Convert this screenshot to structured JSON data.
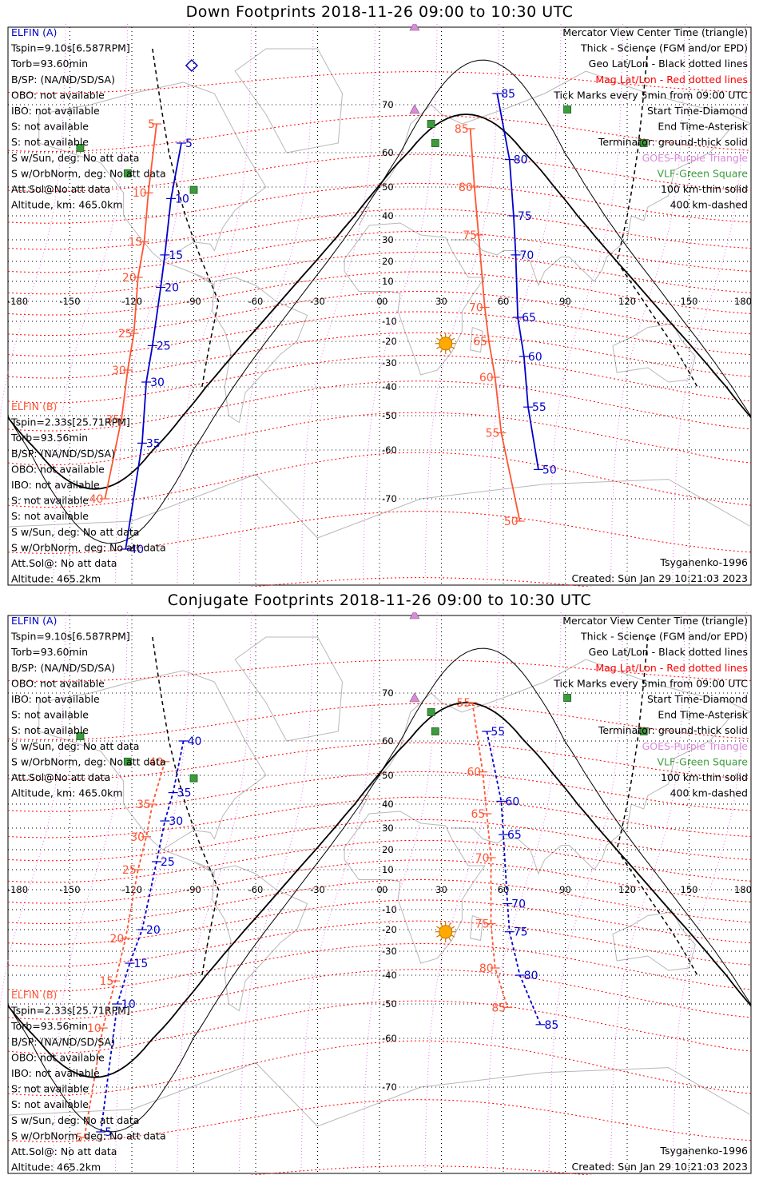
{
  "panels": [
    {
      "id": "top",
      "title": "Down Footprints 2018-11-26 09:00 to 10:30 UTC",
      "left_block_a": {
        "header": "ELFIN (A)",
        "lines": [
          "Tspin=9.10s[6.587RPM]",
          "Torb=93.60min",
          "B/SP: (NA/ND/SD/SA)",
          "OBO: not available",
          "IBO: not available",
          "S: not available",
          "S: not available",
          "S w/Sun, deg: No att data",
          "S w/OrbNorm, deg: No att data",
          "Att.Sol@No att data",
          "Altitude, km: 465.0km"
        ]
      },
      "left_block_b": {
        "header": "ELFIN (B)",
        "lines": [
          "Tspin=2.33s[25.71RPM]",
          "Torb=93.56min",
          "B/SP: (NA/ND/SD/SA)",
          "OBO: not available",
          "IBO: not available",
          "S: not available",
          "S: not available",
          "S w/Sun, deg: No att data",
          "S w/OrbNorm, deg: No att data",
          "Att.Sol@: No att data",
          "Altitude: 465.2km"
        ]
      },
      "legend": [
        {
          "text": "Mercator View Center Time (triangle)",
          "color": "#000000"
        },
        {
          "text": "Thick - Science (FGM and/or EPD)",
          "color": "#000000"
        },
        {
          "text": "Geo Lat/Lon - Black dotted lines",
          "color": "#000000"
        },
        {
          "text": "Mag Lat/Lon - Red dotted lines",
          "color": "#ff0000"
        },
        {
          "text": "Tick Marks every 5min from 09:00 UTC",
          "color": "#000000"
        },
        {
          "text": "Start Time-Diamond",
          "color": "#000000"
        },
        {
          "text": "End Time-Asterisk",
          "color": "#000000"
        },
        {
          "text": "Terminator: ground-thick solid",
          "color": "#000000"
        },
        {
          "text": "GOES-Purple Triangle",
          "color": "#dd88dd"
        },
        {
          "text": "VLF-Green Square",
          "color": "#3c9c3c"
        },
        {
          "text": "100 km-thin solid",
          "color": "#000000"
        },
        {
          "text": "400 km-dashed",
          "color": "#000000"
        }
      ],
      "model": "Tsyganenko-1996",
      "created": "Created: Sun Jan 29 10:21:03 2023"
    },
    {
      "id": "bottom",
      "title": "Conjugate Footprints 2018-11-26 09:00 to 10:30 UTC",
      "left_block_a": {
        "header": "ELFIN (A)",
        "lines": [
          "Tspin=9.10s[6.587RPM]",
          "Torb=93.60min",
          "B/SP: (NA/ND/SD/SA)",
          "OBO: not available",
          "IBO: not available",
          "S: not available",
          "S: not available",
          "S w/Sun, deg: No att data",
          "S w/OrbNorm, deg: No att data",
          "Att.Sol@No att data",
          "Altitude, km: 465.0km"
        ]
      },
      "left_block_b": {
        "header": "ELFIN (B)",
        "lines": [
          "Tspin=2.33s[25.71RPM]",
          "Torb=93.56min",
          "B/SP: (NA/ND/SD/SA)",
          "OBO: not available",
          "IBO: not available",
          "S: not available",
          "S: not available",
          "S w/Sun, deg: No att data",
          "S w/OrbNorm, deg: No att data",
          "Att.Sol@: No att data",
          "Altitude: 465.2km"
        ]
      },
      "legend": [
        {
          "text": "Mercator View Center Time (triangle)",
          "color": "#000000"
        },
        {
          "text": "Thick - Science (FGM and/or EPD)",
          "color": "#000000"
        },
        {
          "text": "Geo Lat/Lon - Black dotted lines",
          "color": "#000000"
        },
        {
          "text": "Mag Lat/Lon - Red dotted lines",
          "color": "#ff0000"
        },
        {
          "text": "Tick Marks every 5min from 09:00 UTC",
          "color": "#000000"
        },
        {
          "text": "Start Time-Diamond",
          "color": "#000000"
        },
        {
          "text": "End Time-Asterisk",
          "color": "#000000"
        },
        {
          "text": "Terminator: ground-thick solid",
          "color": "#000000"
        },
        {
          "text": "GOES-Purple Triangle",
          "color": "#dd88dd"
        },
        {
          "text": "VLF-Green Square",
          "color": "#3c9c3c"
        },
        {
          "text": "100 km-thin solid",
          "color": "#000000"
        },
        {
          "text": "400 km-dashed",
          "color": "#000000"
        }
      ],
      "model": "Tsyganenko-1996",
      "created": "Created: Sun Jan 29 10:21:03 2023"
    }
  ],
  "lon_labels": [
    "-180",
    "-150",
    "-120",
    "-90",
    "-60",
    "-30",
    "0",
    "30",
    "60",
    "90",
    "120",
    "150",
    "180"
  ],
  "lat_labels": [
    "70",
    "60",
    "50",
    "40",
    "30",
    "20",
    "10",
    "0",
    "-10",
    "-20",
    "-30",
    "-40",
    "-50",
    "-60",
    "-70"
  ],
  "colors": {
    "elfin_a": "#0000cc",
    "elfin_b": "#ff5533",
    "mag_grid": "#ff0000",
    "goes": "#dd88dd",
    "vlf": "#3c9c3c",
    "sun": "#ffaa00"
  },
  "map_data": {
    "top": {
      "track_west_a": {
        "start": [
          -91,
          77
        ],
        "end": [
          -120,
          -82
        ]
      },
      "track_east_a": {
        "start": [
          46,
          80
        ],
        "end": [
          84,
          -74
        ]
      },
      "ticks_west_a": [
        {
          "label": "5",
          "lon": -96,
          "lat": 62
        },
        {
          "label": "10",
          "lon": -101,
          "lat": 46
        },
        {
          "label": "15",
          "lon": -104,
          "lat": 23
        },
        {
          "label": "20",
          "lon": -106,
          "lat": 7
        },
        {
          "label": "25",
          "lon": -110,
          "lat": -22
        },
        {
          "label": "30",
          "lon": -113,
          "lat": -38
        },
        {
          "label": "35",
          "lon": -115,
          "lat": -58
        },
        {
          "label": "40",
          "lon": -123,
          "lat": -79
        }
      ],
      "ticks_west_b": [
        {
          "label": "5",
          "lon": -108,
          "lat": 66
        },
        {
          "label": "10",
          "lon": -112,
          "lat": 48
        },
        {
          "label": "15",
          "lon": -114,
          "lat": 29
        },
        {
          "label": "20",
          "lon": -117,
          "lat": 12
        },
        {
          "label": "25",
          "lon": -119,
          "lat": -16
        },
        {
          "label": "30",
          "lon": -122,
          "lat": -33
        },
        {
          "label": "35",
          "lon": -125,
          "lat": -51
        },
        {
          "label": "40",
          "lon": -133,
          "lat": -70
        }
      ],
      "ticks_east_a": [
        {
          "label": "85",
          "lon": 57,
          "lat": 72
        },
        {
          "label": "80",
          "lon": 63,
          "lat": 58
        },
        {
          "label": "75",
          "lon": 65,
          "lat": 40
        },
        {
          "label": "70",
          "lon": 66,
          "lat": 23
        },
        {
          "label": "65",
          "lon": 67,
          "lat": -8
        },
        {
          "label": "60",
          "lon": 70,
          "lat": -27
        },
        {
          "label": "55",
          "lon": 72,
          "lat": -47
        },
        {
          "label": "50",
          "lon": 77,
          "lat": -64
        }
      ],
      "ticks_east_b": [
        {
          "label": "85",
          "lon": 44,
          "lat": 65
        },
        {
          "label": "80",
          "lon": 46,
          "lat": 50
        },
        {
          "label": "75",
          "lon": 48,
          "lat": 32
        },
        {
          "label": "70",
          "lon": 51,
          "lat": -3
        },
        {
          "label": "65",
          "lon": 53,
          "lat": -20
        },
        {
          "label": "60",
          "lon": 56,
          "lat": -36
        },
        {
          "label": "55",
          "lon": 59,
          "lat": -55
        },
        {
          "label": "50",
          "lon": 68,
          "lat": -74
        }
      ],
      "goes": [
        {
          "lon": 17,
          "lat": 84
        },
        {
          "lon": 17,
          "lat": 69
        }
      ],
      "vlf": [
        {
          "lon": 25,
          "lat": 66
        },
        {
          "lon": 27,
          "lat": 62
        },
        {
          "lon": 91,
          "lat": 69
        },
        {
          "lon": 128,
          "lat": 62
        },
        {
          "lon": -145,
          "lat": 61
        },
        {
          "lon": -122,
          "lat": 54
        },
        {
          "lon": -90,
          "lat": 49
        }
      ],
      "sun": {
        "lon": 32,
        "lat": -21
      }
    },
    "bottom": {
      "ticks_west_a": [
        {
          "label": "40",
          "lon": -95,
          "lat": 60
        },
        {
          "label": "35",
          "lon": -100,
          "lat": 44
        },
        {
          "label": "30",
          "lon": -104,
          "lat": 33
        },
        {
          "label": "25",
          "lon": -108,
          "lat": 14
        },
        {
          "label": "20",
          "lon": -115,
          "lat": -20
        },
        {
          "label": "15",
          "lon": -121,
          "lat": -35
        },
        {
          "label": "10",
          "lon": -127,
          "lat": -50
        },
        {
          "label": "5",
          "lon": -135,
          "lat": -78
        }
      ],
      "ticks_west_b": [
        {
          "label": "40",
          "lon": -104,
          "lat": 54
        },
        {
          "label": "35",
          "lon": -110,
          "lat": 40
        },
        {
          "label": "30",
          "lon": -113,
          "lat": 26
        },
        {
          "label": "25",
          "lon": -117,
          "lat": 10
        },
        {
          "label": "20",
          "lon": -123,
          "lat": -24
        },
        {
          "label": "15",
          "lon": -128,
          "lat": -42
        },
        {
          "label": "10",
          "lon": -134,
          "lat": -57
        },
        {
          "label": "5",
          "lon": -143,
          "lat": -79
        }
      ],
      "ticks_east_a": [
        {
          "label": "55",
          "lon": 52,
          "lat": 62
        },
        {
          "label": "60",
          "lon": 59,
          "lat": 41
        },
        {
          "label": "65",
          "lon": 60,
          "lat": 27
        },
        {
          "label": "70",
          "lon": 62,
          "lat": -7
        },
        {
          "label": "75",
          "lon": 63,
          "lat": -21
        },
        {
          "label": "80",
          "lon": 68,
          "lat": -40
        },
        {
          "label": "85",
          "lon": 78,
          "lat": -56
        }
      ],
      "ticks_east_b": [
        {
          "label": "55",
          "lon": 45,
          "lat": 68
        },
        {
          "label": "60",
          "lon": 50,
          "lat": 51
        },
        {
          "label": "65",
          "lon": 52,
          "lat": 36
        },
        {
          "label": "70",
          "lon": 54,
          "lat": 16
        },
        {
          "label": "75",
          "lon": 54,
          "lat": -17
        },
        {
          "label": "80",
          "lon": 56,
          "lat": -37
        },
        {
          "label": "85",
          "lon": 62,
          "lat": -51
        }
      ],
      "goes": [
        {
          "lon": 17,
          "lat": 84
        },
        {
          "lon": 17,
          "lat": 69
        }
      ],
      "vlf": [
        {
          "lon": 25,
          "lat": 66
        },
        {
          "lon": 27,
          "lat": 62
        },
        {
          "lon": 91,
          "lat": 69
        },
        {
          "lon": 128,
          "lat": 62
        },
        {
          "lon": -145,
          "lat": 61
        },
        {
          "lon": -122,
          "lat": 54
        },
        {
          "lon": -90,
          "lat": 49
        }
      ],
      "sun": {
        "lon": 32,
        "lat": -21
      }
    }
  }
}
